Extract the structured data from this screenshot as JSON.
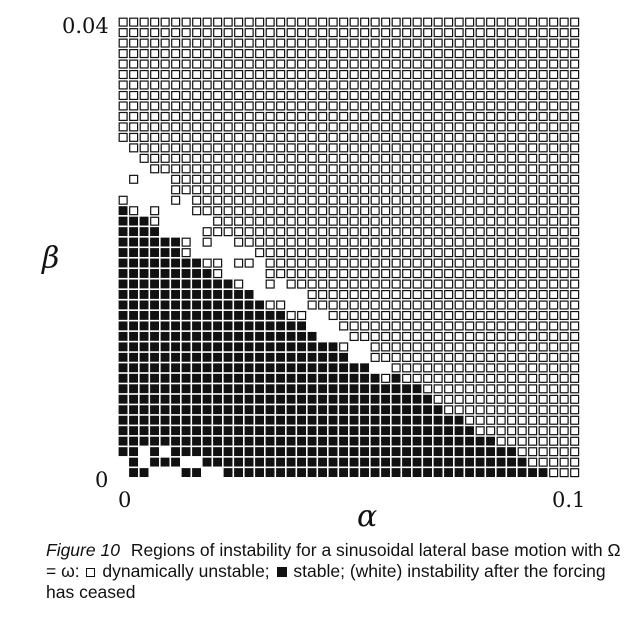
{
  "chart_data": {
    "type": "heatmap",
    "xlabel": "α",
    "ylabel": "β",
    "xlim": [
      0,
      0.1
    ],
    "ylim": [
      0,
      0.04
    ],
    "x_ticks": [
      "0",
      "0.1"
    ],
    "y_ticks": [
      "0",
      "0.04"
    ],
    "grid": {
      "columns": 44,
      "rows": 44
    },
    "categories": {
      "open": "dynamically unstable",
      "filled": "stable",
      "white": "instability after the forcing has ceased"
    },
    "stable_boundary": {
      "x": [
        0.0,
        0.01,
        0.02,
        0.03,
        0.04,
        0.05,
        0.06,
        0.07,
        0.08,
        0.09,
        0.1
      ],
      "y": [
        0.0245,
        0.021,
        0.018,
        0.0155,
        0.013,
        0.0105,
        0.0085,
        0.006,
        0.0035,
        0.0015,
        0.0
      ]
    },
    "white_band": {
      "x": [
        0.0,
        0.01,
        0.02,
        0.03,
        0.04,
        0.05,
        0.06,
        0.07
      ],
      "y_low": [
        0.0245,
        0.021,
        0.018,
        0.0155,
        0.013,
        0.0105,
        0.0085,
        0.006
      ],
      "y_high": [
        0.029,
        0.026,
        0.0225,
        0.019,
        0.016,
        0.0125,
        0.0095,
        0.0065
      ]
    }
  },
  "caption": {
    "figure_label": "Figure 10",
    "text_1": "Regions of instability for a sinusoidal lateral base motion with Ω = ω:",
    "open_label": "dynamically unstable;",
    "filled_label": "stable; (white) instability after the forcing has ceased"
  },
  "colors": {
    "ink": "#111111",
    "background": "#ffffff"
  }
}
